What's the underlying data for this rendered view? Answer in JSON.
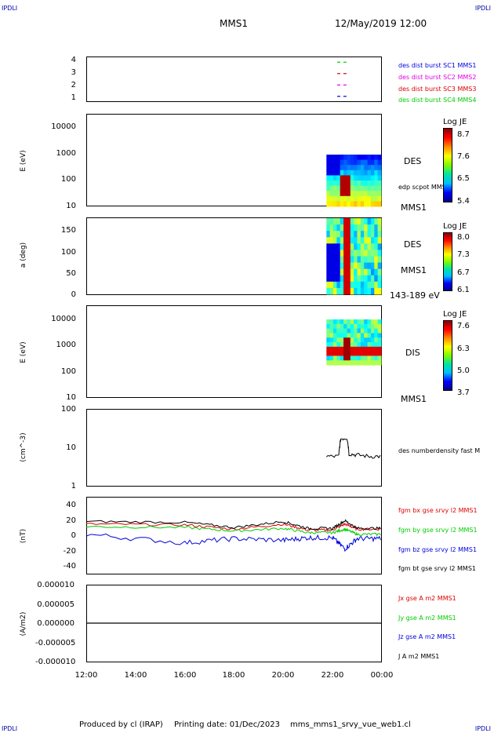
{
  "corners": {
    "tl": "IPDLI",
    "tr": "IPDLI",
    "bl": "IPDLI",
    "br": "IPDLI"
  },
  "header": {
    "mission": "MMS1",
    "datetime": "12/May/2019 12:00"
  },
  "footer": {
    "produced": "Produced by cl (IRAP)",
    "printing": "Printing date: 01/Dec/2023",
    "file": "mms_mms1_srvy_vue_web1.cl"
  },
  "time_axis": {
    "labels": [
      "12:00",
      "14:00",
      "16:00",
      "18:00",
      "20:00",
      "22:00",
      "00:00"
    ]
  },
  "colors": {
    "red": "#dd0000",
    "green": "#00cc00",
    "blue": "#0000dd",
    "magenta": "#dd00dd",
    "black": "#000000"
  },
  "panel1": {
    "yticks": [
      "4",
      "3",
      "2",
      "1"
    ],
    "legend": [
      "des dist burst SC1 MMS1",
      "des dist burst SC2 MMS2",
      "des dist burst SC3 MMS3",
      "des dist burst SC4 MMS4"
    ]
  },
  "panel2": {
    "ylabel": "E (eV)",
    "yticks": [
      "10000",
      "1000",
      "100",
      "10"
    ],
    "label": "DES",
    "sublabel": "edp scpot MMS1",
    "bottom": "MMS1",
    "cbar": {
      "title": "Log JE",
      "ticks": [
        "8.7",
        "7.6",
        "6.5",
        "5.4"
      ]
    }
  },
  "panel3": {
    "ylabel": "a (deg)",
    "yticks": [
      "150",
      "100",
      "50",
      "0"
    ],
    "label": "DES",
    "sublabel": "MMS1",
    "bottom": "143-189 eV",
    "cbar": {
      "title": "Log JE",
      "ticks": [
        "8.0",
        "7.3",
        "6.7",
        "6.1"
      ]
    }
  },
  "panel4": {
    "ylabel": "E (eV)",
    "yticks": [
      "10000",
      "1000",
      "100",
      "10"
    ],
    "label": "DIS",
    "bottom": "MMS1",
    "cbar": {
      "title": "Log JE",
      "ticks": [
        "7.6",
        "6.3",
        "5.0",
        "3.7"
      ]
    }
  },
  "panel5": {
    "ylabel": "(cm^-3)",
    "yticks": [
      "100",
      "10",
      "1"
    ],
    "legend": "des numberdensity fast M"
  },
  "panel6": {
    "ylabel": "(nT)",
    "yticks": [
      "40",
      "20",
      "0",
      "-20",
      "-40"
    ],
    "legend": [
      "fgm bx gse srvy l2 MMS1",
      "fgm by gse srvy l2 MMS1",
      "fgm bz gse srvy l2 MMS1",
      "fgm bt gse srvy l2 MMS1"
    ]
  },
  "panel7": {
    "ylabel": "(A/m2)",
    "yticks": [
      "0.000010",
      "0.000005",
      "0.000000",
      "-0.000005",
      "-0.000010"
    ],
    "legend": [
      "Jx gse A m2 MMS1",
      "Jy gse A m2 MMS1",
      "Jz gse A m2 MMS1",
      "J A m2 MMS1"
    ]
  },
  "chart_data": [
    {
      "type": "scatter",
      "title": "",
      "xlabel": "",
      "ylabel": "",
      "ylim": [
        0.5,
        4.5
      ],
      "series": [
        {
          "name": "des dist burst SC1 MMS1",
          "x": [
            "22:15",
            "22:30"
          ],
          "values": [
            1,
            1
          ]
        },
        {
          "name": "des dist burst SC2 MMS2",
          "x": [
            "22:15",
            "22:30"
          ],
          "values": [
            2,
            2
          ]
        },
        {
          "name": "des dist burst SC3 MMS3",
          "x": [
            "22:15",
            "22:30"
          ],
          "values": [
            3,
            3
          ]
        },
        {
          "name": "des dist burst SC4 MMS4",
          "x": [
            "22:15",
            "22:30"
          ],
          "values": [
            4,
            4
          ]
        }
      ]
    },
    {
      "type": "heatmap",
      "ylabel": "E (eV)",
      "yscale": "log",
      "ylim": [
        10,
        20000
      ],
      "xrange": [
        "21:45",
        "24:00"
      ],
      "colorbar": "Log JE",
      "crange": [
        5.4,
        8.7
      ]
    },
    {
      "type": "heatmap",
      "ylabel": "a (deg)",
      "ylim": [
        0,
        180
      ],
      "xrange": [
        "21:45",
        "24:00"
      ],
      "colorbar": "Log JE",
      "crange": [
        6.1,
        8.0
      ]
    },
    {
      "type": "heatmap",
      "ylabel": "E (eV)",
      "yscale": "log",
      "ylim": [
        10,
        20000
      ],
      "xrange": [
        "21:45",
        "24:00"
      ],
      "colorbar": "Log JE",
      "crange": [
        3.7,
        7.6
      ]
    },
    {
      "type": "line",
      "ylabel": "(cm^-3)",
      "yscale": "log",
      "ylim": [
        1,
        100
      ],
      "series": [
        {
          "name": "des numberdensity fast M",
          "x": [
            "21:45",
            "22:15",
            "22:20",
            "22:35",
            "22:40",
            "23:00",
            "23:30",
            "24:00"
          ],
          "values": [
            6,
            6,
            17,
            18,
            7,
            6.5,
            6,
            6
          ]
        }
      ]
    },
    {
      "type": "line",
      "ylabel": "(nT)",
      "ylim": [
        -45,
        45
      ],
      "series": [
        {
          "name": "fgm bx gse srvy l2 MMS1",
          "x": [
            "12:00",
            "16:00",
            "18:00",
            "20:00",
            "21:00",
            "22:00",
            "22:30",
            "23:00",
            "24:00"
          ],
          "values": [
            14,
            13,
            8,
            14,
            7,
            7,
            14,
            8,
            8
          ]
        },
        {
          "name": "fgm by gse srvy l2 MMS1",
          "x": [
            "12:00",
            "16:00",
            "18:00",
            "20:00",
            "21:00",
            "22:00",
            "22:30",
            "23:00",
            "24:00"
          ],
          "values": [
            11,
            10,
            6,
            9,
            4,
            4,
            8,
            2,
            2
          ]
        },
        {
          "name": "fgm bz gse srvy l2 MMS1",
          "x": [
            "12:00",
            "16:00",
            "18:00",
            "20:00",
            "21:00",
            "22:00",
            "22:30",
            "23:00",
            "24:00"
          ],
          "values": [
            2,
            -8,
            -3,
            -5,
            -2,
            -2,
            -15,
            -3,
            -3
          ]
        },
        {
          "name": "fgm bt gse srvy l2 MMS1",
          "x": [
            "12:00",
            "16:00",
            "18:00",
            "20:00",
            "21:00",
            "22:00",
            "22:30",
            "23:00",
            "24:00"
          ],
          "values": [
            17,
            16,
            10,
            17,
            9,
            9,
            18,
            9,
            9
          ]
        }
      ]
    },
    {
      "type": "line",
      "ylabel": "(A/m2)",
      "ylim": [
        -1e-05,
        1e-05
      ],
      "series": [
        {
          "name": "J A m2 MMS1",
          "x": [
            "12:00",
            "24:00"
          ],
          "values": [
            0,
            0
          ]
        }
      ]
    }
  ]
}
